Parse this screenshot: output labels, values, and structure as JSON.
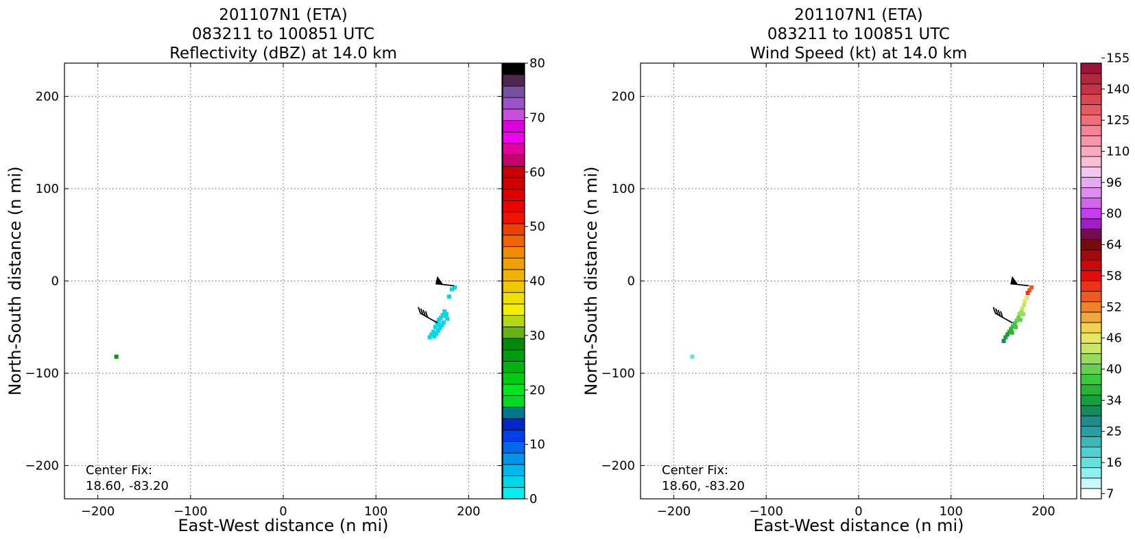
{
  "chart_data": [
    {
      "type": "scatter",
      "title_lines": [
        "201107N1 (ETA)",
        "083211 to 100851 UTC",
        "Reflectivity (dBZ) at 14.0 km"
      ],
      "xlabel": "East-West distance (n mi)",
      "ylabel": "North-South distance (n mi)",
      "xlim": [
        -236,
        236
      ],
      "ylim": [
        -236,
        236
      ],
      "xticks": [
        -200,
        -100,
        0,
        100,
        200
      ],
      "yticks": [
        -200,
        -100,
        0,
        100,
        200
      ],
      "xtick_labels": [
        "−200",
        "−100",
        "0",
        "100",
        "200"
      ],
      "ytick_labels": [
        "−200",
        "−100",
        "0",
        "100",
        "200"
      ],
      "grid": true,
      "center_fix": {
        "label": "Center Fix:",
        "coords": "18.60, -83.20"
      },
      "colorbar": {
        "min": 0,
        "max": 80,
        "step": 2.5,
        "tick_values": [
          0,
          10,
          20,
          30,
          40,
          50,
          60,
          70,
          80
        ],
        "tick_labels": [
          "0",
          "10",
          "20",
          "30",
          "40",
          "50",
          "60",
          "70",
          "80"
        ],
        "colors": [
          "#00f0f0",
          "#00d8ea",
          "#00b8ec",
          "#0094ec",
          "#0068ec",
          "#0040ec",
          "#0028c8",
          "#00788c",
          "#00dc24",
          "#00e61e",
          "#00cc14",
          "#00b410",
          "#009c10",
          "#008a0c",
          "#64b414",
          "#b4d814",
          "#f0f000",
          "#f0e000",
          "#f0c800",
          "#f0b400",
          "#f0a000",
          "#f08c00",
          "#f06400",
          "#f04000",
          "#f01400",
          "#f00000",
          "#e00000",
          "#d00000",
          "#c80000",
          "#c8006e",
          "#e4009c",
          "#f000f0",
          "#dc00dc",
          "#c850dc",
          "#a050c8",
          "#7850a0",
          "#50284e",
          "#000000"
        ]
      },
      "points": [
        {
          "x": -180,
          "y": -82,
          "v": 12
        },
        {
          "x": 185,
          "y": -7,
          "v": 1
        },
        {
          "x": 182,
          "y": -9,
          "v": 1
        },
        {
          "x": 179,
          "y": -17,
          "v": 1
        },
        {
          "x": 176,
          "y": -36,
          "v": 1
        },
        {
          "x": 174,
          "y": -33,
          "v": 1
        },
        {
          "x": 177,
          "y": -41,
          "v": 1
        },
        {
          "x": 172,
          "y": -37,
          "v": 1
        },
        {
          "x": 170,
          "y": -40,
          "v": 1
        },
        {
          "x": 168,
          "y": -42,
          "v": 1
        },
        {
          "x": 173,
          "y": -45,
          "v": 1
        },
        {
          "x": 171,
          "y": -48,
          "v": 1
        },
        {
          "x": 166,
          "y": -45,
          "v": 1
        },
        {
          "x": 169,
          "y": -51,
          "v": 1
        },
        {
          "x": 164,
          "y": -50,
          "v": 1
        },
        {
          "x": 167,
          "y": -54,
          "v": 1
        },
        {
          "x": 162,
          "y": -55,
          "v": 1
        },
        {
          "x": 165,
          "y": -57,
          "v": 1
        },
        {
          "x": 160,
          "y": -58,
          "v": 1
        },
        {
          "x": 163,
          "y": -60,
          "v": 1
        },
        {
          "x": 158,
          "y": -61,
          "v": 1
        },
        {
          "x": 175,
          "y": -38,
          "v": 1
        },
        {
          "x": 168,
          "y": -47,
          "v": 1
        }
      ],
      "wind_barbs": [
        {
          "x": 165,
          "y": -3,
          "type": "pennant"
        },
        {
          "x": 148,
          "y": -38,
          "type": "barbs"
        }
      ]
    },
    {
      "type": "scatter",
      "title_lines": [
        "201107N1 (ETA)",
        "083211 to 100851 UTC",
        "Wind Speed (kt) at 14.0 km"
      ],
      "xlabel": "East-West distance (n mi)",
      "ylabel": "North-South distance (n mi)",
      "xlim": [
        -236,
        236
      ],
      "ylim": [
        -236,
        236
      ],
      "xticks": [
        -200,
        -100,
        0,
        100,
        200
      ],
      "yticks": [
        -200,
        -100,
        0,
        100,
        200
      ],
      "xtick_labels": [
        "−200",
        "−100",
        "0",
        "100",
        "200"
      ],
      "ytick_labels": [
        "−200",
        "−100",
        "0",
        "100",
        "200"
      ],
      "grid": true,
      "center_fix": {
        "label": "Center Fix:",
        "coords": "18.60, -83.20"
      },
      "colorbar": {
        "tick_labels": [
          "7",
          "16",
          "25",
          "34",
          "40",
          "46",
          "52",
          "58",
          "64",
          "80",
          "96",
          "110",
          "125",
          "140",
          "155"
        ],
        "colors": [
          "#ffffff",
          "#c8fafa",
          "#8ef0f0",
          "#64e0e0",
          "#50d0d0",
          "#3cb8b8",
          "#28a0a0",
          "#1e8c8c",
          "#148c5a",
          "#14a03c",
          "#28b432",
          "#3cc83c",
          "#64d250",
          "#96dc5a",
          "#c8e664",
          "#e6e664",
          "#f0d250",
          "#f0aa3c",
          "#f08228",
          "#f05a1e",
          "#f03214",
          "#e60a0a",
          "#c80a0a",
          "#a00a0a",
          "#780a0a",
          "#780a50",
          "#a01ec8",
          "#c83cf0",
          "#d264f0",
          "#dc8cf0",
          "#e6aaf0",
          "#f0c8f0",
          "#f8bed2",
          "#f8aac0",
          "#f896aa",
          "#f88296",
          "#f06e78",
          "#e65a64",
          "#dc4650",
          "#c83246",
          "#b4283c",
          "#9b1437"
        ]
      },
      "points": [
        {
          "x": -180,
          "y": -82,
          "v": 3
        },
        {
          "x": 187,
          "y": -7,
          "v": 19
        },
        {
          "x": 185,
          "y": -10,
          "v": 19
        },
        {
          "x": 183,
          "y": -13,
          "v": 20
        },
        {
          "x": 182,
          "y": -18,
          "v": 15
        },
        {
          "x": 180,
          "y": -22,
          "v": 15
        },
        {
          "x": 179,
          "y": -26,
          "v": 14
        },
        {
          "x": 177,
          "y": -30,
          "v": 14
        },
        {
          "x": 176,
          "y": -34,
          "v": 13
        },
        {
          "x": 174,
          "y": -36,
          "v": 13
        },
        {
          "x": 173,
          "y": -40,
          "v": 12
        },
        {
          "x": 171,
          "y": -43,
          "v": 12
        },
        {
          "x": 169,
          "y": -46,
          "v": 11
        },
        {
          "x": 167,
          "y": -49,
          "v": 11
        },
        {
          "x": 165,
          "y": -52,
          "v": 10
        },
        {
          "x": 163,
          "y": -55,
          "v": 10
        },
        {
          "x": 161,
          "y": -58,
          "v": 9
        },
        {
          "x": 159,
          "y": -61,
          "v": 9
        },
        {
          "x": 157,
          "y": -65,
          "v": 8
        },
        {
          "x": 175,
          "y": -42,
          "v": 12
        },
        {
          "x": 178,
          "y": -36,
          "v": 13
        },
        {
          "x": 170,
          "y": -50,
          "v": 11
        },
        {
          "x": 166,
          "y": -56,
          "v": 10
        }
      ],
      "wind_barbs": [
        {
          "x": 165,
          "y": -3,
          "type": "pennant"
        },
        {
          "x": 148,
          "y": -38,
          "type": "barbs"
        }
      ]
    }
  ]
}
